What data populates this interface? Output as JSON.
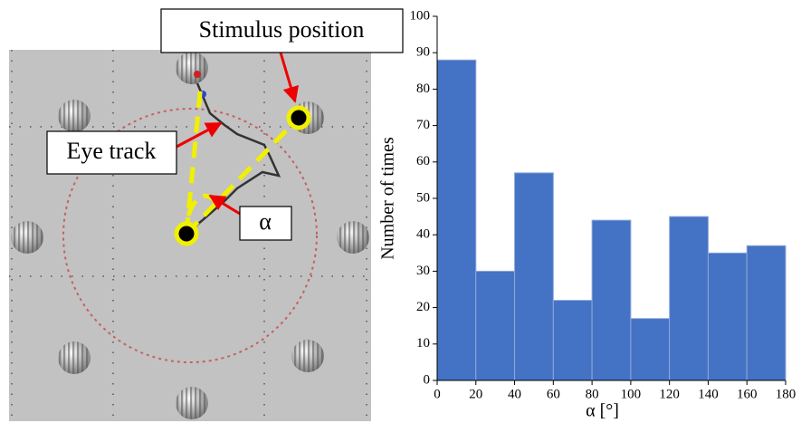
{
  "illustration": {
    "labels": [
      "Stimulus position",
      "Eye track",
      "α"
    ]
  },
  "chart_data": {
    "type": "histogram",
    "bins": [
      0,
      20,
      40,
      60,
      80,
      100,
      120,
      140,
      160,
      180
    ],
    "values": [
      88,
      30,
      57,
      22,
      44,
      17,
      45,
      35,
      37
    ],
    "color": "#4472c4",
    "xlim": [
      0,
      180
    ],
    "xticks": [
      0,
      20,
      40,
      60,
      80,
      100,
      120,
      140,
      160,
      180
    ],
    "ylim": [
      0,
      100
    ],
    "yticks": [
      0,
      10,
      20,
      30,
      40,
      50,
      60,
      70,
      80,
      90,
      100
    ],
    "xlabel": "α [°]",
    "ylabel": "Number of times"
  }
}
